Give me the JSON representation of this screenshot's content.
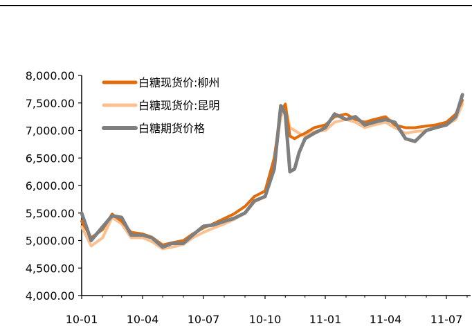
{
  "chart_data": {
    "type": "line",
    "title": "",
    "xlabel": "",
    "ylabel": "",
    "ylim": [
      4000,
      8000
    ],
    "yticks": [
      "4,000.00",
      "4,500.00",
      "5,000.00",
      "5,500.00",
      "6,000.00",
      "6,500.00",
      "7,000.00",
      "7,500.00",
      "8,000.00"
    ],
    "xticks": [
      "10-01",
      "10-04",
      "10-07",
      "10-10",
      "11-01",
      "11-04",
      "11-07"
    ],
    "x": [
      "2010-01-01",
      "2010-01-15",
      "2010-02-01",
      "2010-02-15",
      "2010-03-01",
      "2010-03-15",
      "2010-04-01",
      "2010-04-15",
      "2010-05-01",
      "2010-05-15",
      "2010-06-01",
      "2010-06-15",
      "2010-07-01",
      "2010-07-15",
      "2010-08-01",
      "2010-08-15",
      "2010-09-01",
      "2010-09-15",
      "2010-10-01",
      "2010-10-15",
      "2010-10-25",
      "2010-11-01",
      "2010-11-08",
      "2010-11-15",
      "2010-11-22",
      "2010-12-01",
      "2010-12-15",
      "2011-01-01",
      "2011-01-15",
      "2011-02-01",
      "2011-02-15",
      "2011-03-01",
      "2011-03-15",
      "2011-04-01",
      "2011-04-15",
      "2011-05-01",
      "2011-05-15",
      "2011-06-01",
      "2011-06-15",
      "2011-07-01",
      "2011-07-15",
      "2011-07-25"
    ],
    "legend_position": "top-left",
    "series": [
      {
        "name": "白糖现货价:柳州",
        "color": "#E26B0A",
        "width": 4,
        "values": [
          5350,
          5050,
          5200,
          5480,
          5350,
          5150,
          5120,
          5060,
          4920,
          4960,
          5000,
          5120,
          5230,
          5300,
          5400,
          5480,
          5620,
          5800,
          5900,
          6500,
          7350,
          7480,
          6900,
          6850,
          6900,
          6950,
          7050,
          7100,
          7250,
          7300,
          7200,
          7150,
          7200,
          7250,
          7100,
          7050,
          7050,
          7080,
          7100,
          7150,
          7300,
          7550
        ]
      },
      {
        "name": "白糖现货价:昆明",
        "color": "#FAC090",
        "width": 4,
        "values": [
          5250,
          4900,
          5050,
          5420,
          5300,
          5050,
          5050,
          4980,
          4850,
          4880,
          4930,
          5050,
          5150,
          5220,
          5300,
          5380,
          5500,
          5700,
          5800,
          6400,
          7250,
          7400,
          7050,
          7000,
          6950,
          6900,
          6980,
          7000,
          7150,
          7200,
          7150,
          7050,
          7100,
          7150,
          7050,
          6950,
          6980,
          7000,
          7050,
          7100,
          7200,
          7480
        ]
      },
      {
        "name": "白糖期货价格",
        "color": "#7F7F7F",
        "width": 5,
        "values": [
          5500,
          5000,
          5250,
          5450,
          5420,
          5100,
          5100,
          5050,
          4880,
          4950,
          4950,
          5100,
          5260,
          5280,
          5350,
          5400,
          5500,
          5720,
          5800,
          6300,
          7450,
          7300,
          6250,
          6300,
          6600,
          6850,
          6950,
          7050,
          7300,
          7200,
          7250,
          7100,
          7150,
          7200,
          7150,
          6850,
          6800,
          7000,
          7050,
          7100,
          7250,
          7650
        ]
      }
    ]
  }
}
